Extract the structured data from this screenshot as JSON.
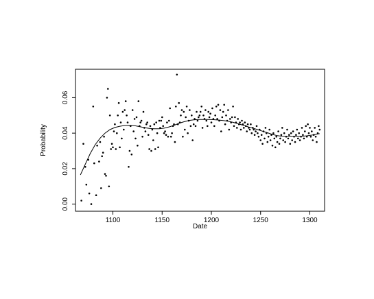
{
  "chart_data": {
    "type": "scatter",
    "title": "",
    "xlabel": "Date",
    "ylabel": "Probability",
    "xlim": [
      1062,
      1315
    ],
    "ylim": [
      -0.004,
      0.076
    ],
    "x_ticks": [
      1100,
      1150,
      1200,
      1250,
      1300
    ],
    "y_ticks": [
      0.0,
      0.02,
      0.04,
      0.06
    ],
    "x_tick_labels": [
      "1100",
      "1150",
      "1200",
      "1250",
      "1300"
    ],
    "y_tick_labels": [
      "0.00",
      "0.02",
      "0.04",
      "0.06"
    ],
    "grid": false,
    "legend": "none",
    "colors": {
      "points": "#000000",
      "line": "#000000",
      "axes": "#000000"
    },
    "series": [
      {
        "kind": "points",
        "points": [
          [
            1068,
            0.002
          ],
          [
            1070,
            0.034
          ],
          [
            1072,
            0.021
          ],
          [
            1073,
            0.011
          ],
          [
            1075,
            0.025
          ],
          [
            1076,
            0.006
          ],
          [
            1078,
            0.0
          ],
          [
            1080,
            0.055
          ],
          [
            1081,
            0.023
          ],
          [
            1083,
            0.005
          ],
          [
            1084,
            0.033
          ],
          [
            1086,
            0.024
          ],
          [
            1087,
            0.035
          ],
          [
            1088,
            0.009
          ],
          [
            1089,
            0.027
          ],
          [
            1090,
            0.029
          ],
          [
            1091,
            0.038
          ],
          [
            1092,
            0.017
          ],
          [
            1093,
            0.016
          ],
          [
            1094,
            0.06
          ],
          [
            1095,
            0.065
          ],
          [
            1096,
            0.01
          ],
          [
            1097,
            0.05
          ],
          [
            1098,
            0.031
          ],
          [
            1099,
            0.034
          ],
          [
            1100,
            0.032
          ],
          [
            1101,
            0.041
          ],
          [
            1102,
            0.045
          ],
          [
            1103,
            0.031
          ],
          [
            1104,
            0.04
          ],
          [
            1105,
            0.05
          ],
          [
            1106,
            0.057
          ],
          [
            1107,
            0.032
          ],
          [
            1108,
            0.046
          ],
          [
            1109,
            0.037
          ],
          [
            1110,
            0.052
          ],
          [
            1111,
            0.042
          ],
          [
            1112,
            0.053
          ],
          [
            1113,
            0.058
          ],
          [
            1114,
            0.05
          ],
          [
            1115,
            0.046
          ],
          [
            1116,
            0.021
          ],
          [
            1117,
            0.03
          ],
          [
            1118,
            0.044
          ],
          [
            1119,
            0.028
          ],
          [
            1120,
            0.053
          ],
          [
            1121,
            0.041
          ],
          [
            1122,
            0.048
          ],
          [
            1123,
            0.037
          ],
          [
            1124,
            0.049
          ],
          [
            1125,
            0.033
          ],
          [
            1126,
            0.058
          ],
          [
            1127,
            0.044
          ],
          [
            1128,
            0.046
          ],
          [
            1129,
            0.047
          ],
          [
            1130,
            0.038
          ],
          [
            1131,
            0.052
          ],
          [
            1132,
            0.043
          ],
          [
            1133,
            0.041
          ],
          [
            1134,
            0.045
          ],
          [
            1135,
            0.046
          ],
          [
            1136,
            0.039
          ],
          [
            1137,
            0.031
          ],
          [
            1138,
            0.044
          ],
          [
            1139,
            0.03
          ],
          [
            1140,
            0.042
          ],
          [
            1141,
            0.036
          ],
          [
            1142,
            0.045
          ],
          [
            1143,
            0.031
          ],
          [
            1144,
            0.046
          ],
          [
            1145,
            0.04
          ],
          [
            1146,
            0.032
          ],
          [
            1147,
            0.047
          ],
          [
            1148,
            0.043
          ],
          [
            1149,
            0.047
          ],
          [
            1150,
            0.049
          ],
          [
            1151,
            0.044
          ],
          [
            1152,
            0.04
          ],
          [
            1153,
            0.041
          ],
          [
            1154,
            0.039
          ],
          [
            1155,
            0.046
          ],
          [
            1156,
            0.038
          ],
          [
            1157,
            0.047
          ],
          [
            1158,
            0.054
          ],
          [
            1159,
            0.038
          ],
          [
            1160,
            0.04
          ],
          [
            1161,
            0.044
          ],
          [
            1162,
            0.045
          ],
          [
            1163,
            0.035
          ],
          [
            1164,
            0.055
          ],
          [
            1165,
            0.073
          ],
          [
            1166,
            0.045
          ],
          [
            1167,
            0.057
          ],
          [
            1168,
            0.046
          ],
          [
            1169,
            0.05
          ],
          [
            1170,
            0.053
          ],
          [
            1171,
            0.038
          ],
          [
            1172,
            0.052
          ],
          [
            1173,
            0.042
          ],
          [
            1174,
            0.049
          ],
          [
            1175,
            0.055
          ],
          [
            1176,
            0.04
          ],
          [
            1177,
            0.047
          ],
          [
            1178,
            0.053
          ],
          [
            1179,
            0.044
          ],
          [
            1180,
            0.05
          ],
          [
            1181,
            0.036
          ],
          [
            1182,
            0.045
          ],
          [
            1183,
            0.048
          ],
          [
            1184,
            0.044
          ],
          [
            1185,
            0.052
          ],
          [
            1186,
            0.047
          ],
          [
            1187,
            0.049
          ],
          [
            1188,
            0.05
          ],
          [
            1189,
            0.052
          ],
          [
            1190,
            0.055
          ],
          [
            1191,
            0.043
          ],
          [
            1192,
            0.05
          ],
          [
            1193,
            0.048
          ],
          [
            1194,
            0.053
          ],
          [
            1195,
            0.047
          ],
          [
            1196,
            0.044
          ],
          [
            1197,
            0.052
          ],
          [
            1198,
            0.049
          ],
          [
            1199,
            0.051
          ],
          [
            1200,
            0.046
          ],
          [
            1201,
            0.054
          ],
          [
            1202,
            0.048
          ],
          [
            1203,
            0.044
          ],
          [
            1204,
            0.05
          ],
          [
            1205,
            0.055
          ],
          [
            1206,
            0.048
          ],
          [
            1207,
            0.056
          ],
          [
            1208,
            0.047
          ],
          [
            1209,
            0.053
          ],
          [
            1210,
            0.041
          ],
          [
            1211,
            0.049
          ],
          [
            1212,
            0.052
          ],
          [
            1213,
            0.056
          ],
          [
            1214,
            0.045
          ],
          [
            1215,
            0.05
          ],
          [
            1216,
            0.047
          ],
          [
            1217,
            0.053
          ],
          [
            1218,
            0.042
          ],
          [
            1219,
            0.048
          ],
          [
            1220,
            0.046
          ],
          [
            1221,
            0.049
          ],
          [
            1222,
            0.055
          ],
          [
            1223,
            0.044
          ],
          [
            1224,
            0.049
          ],
          [
            1225,
            0.046
          ],
          [
            1226,
            0.043
          ],
          [
            1227,
            0.048
          ],
          [
            1228,
            0.045
          ],
          [
            1229,
            0.046
          ],
          [
            1230,
            0.042
          ],
          [
            1231,
            0.047
          ],
          [
            1232,
            0.045
          ],
          [
            1233,
            0.043
          ],
          [
            1234,
            0.046
          ],
          [
            1235,
            0.044
          ],
          [
            1236,
            0.041
          ],
          [
            1237,
            0.045
          ],
          [
            1238,
            0.043
          ],
          [
            1239,
            0.042
          ],
          [
            1240,
            0.045
          ],
          [
            1241,
            0.04
          ],
          [
            1242,
            0.043
          ],
          [
            1243,
            0.042
          ],
          [
            1244,
            0.039
          ],
          [
            1245,
            0.041
          ],
          [
            1246,
            0.044
          ],
          [
            1247,
            0.04
          ],
          [
            1248,
            0.038
          ],
          [
            1249,
            0.042
          ],
          [
            1250,
            0.036
          ],
          [
            1251,
            0.039
          ],
          [
            1252,
            0.034
          ],
          [
            1253,
            0.041
          ],
          [
            1254,
            0.037
          ],
          [
            1255,
            0.043
          ],
          [
            1256,
            0.04
          ],
          [
            1257,
            0.035
          ],
          [
            1258,
            0.038
          ],
          [
            1259,
            0.042
          ],
          [
            1260,
            0.036
          ],
          [
            1261,
            0.039
          ],
          [
            1262,
            0.033
          ],
          [
            1263,
            0.04
          ],
          [
            1264,
            0.037
          ],
          [
            1265,
            0.032
          ],
          [
            1266,
            0.038
          ],
          [
            1267,
            0.035
          ],
          [
            1268,
            0.041
          ],
          [
            1269,
            0.034
          ],
          [
            1270,
            0.037
          ],
          [
            1271,
            0.039
          ],
          [
            1272,
            0.043
          ],
          [
            1273,
            0.036
          ],
          [
            1274,
            0.04
          ],
          [
            1275,
            0.035
          ],
          [
            1276,
            0.038
          ],
          [
            1277,
            0.042
          ],
          [
            1278,
            0.037
          ],
          [
            1279,
            0.039
          ],
          [
            1280,
            0.034
          ],
          [
            1281,
            0.04
          ],
          [
            1282,
            0.036
          ],
          [
            1283,
            0.041
          ],
          [
            1284,
            0.038
          ],
          [
            1285,
            0.035
          ],
          [
            1286,
            0.039
          ],
          [
            1287,
            0.042
          ],
          [
            1288,
            0.037
          ],
          [
            1289,
            0.04
          ],
          [
            1290,
            0.036
          ],
          [
            1291,
            0.038
          ],
          [
            1292,
            0.043
          ],
          [
            1293,
            0.039
          ],
          [
            1294,
            0.037
          ],
          [
            1295,
            0.041
          ],
          [
            1296,
            0.044
          ],
          [
            1297,
            0.038
          ],
          [
            1298,
            0.045
          ],
          [
            1299,
            0.04
          ],
          [
            1300,
            0.043
          ],
          [
            1301,
            0.038
          ],
          [
            1302,
            0.041
          ],
          [
            1303,
            0.036
          ],
          [
            1304,
            0.039
          ],
          [
            1305,
            0.043
          ],
          [
            1306,
            0.038
          ],
          [
            1307,
            0.035
          ],
          [
            1308,
            0.04
          ],
          [
            1309,
            0.044
          ],
          [
            1310,
            0.042
          ]
        ]
      },
      {
        "kind": "line",
        "points": [
          [
            1067,
            0.0165
          ],
          [
            1072,
            0.0225
          ],
          [
            1077,
            0.0285
          ],
          [
            1082,
            0.0335
          ],
          [
            1087,
            0.0372
          ],
          [
            1092,
            0.04
          ],
          [
            1097,
            0.042
          ],
          [
            1102,
            0.0432
          ],
          [
            1107,
            0.0439
          ],
          [
            1112,
            0.0443
          ],
          [
            1117,
            0.0444
          ],
          [
            1122,
            0.0442
          ],
          [
            1127,
            0.0437
          ],
          [
            1132,
            0.0431
          ],
          [
            1137,
            0.0427
          ],
          [
            1142,
            0.0425
          ],
          [
            1147,
            0.0425
          ],
          [
            1152,
            0.0428
          ],
          [
            1157,
            0.0435
          ],
          [
            1162,
            0.0444
          ],
          [
            1167,
            0.0455
          ],
          [
            1172,
            0.0464
          ],
          [
            1177,
            0.0471
          ],
          [
            1182,
            0.0475
          ],
          [
            1187,
            0.0477
          ],
          [
            1192,
            0.0477
          ],
          [
            1197,
            0.0477
          ],
          [
            1202,
            0.0476
          ],
          [
            1207,
            0.0474
          ],
          [
            1212,
            0.0471
          ],
          [
            1217,
            0.0467
          ],
          [
            1222,
            0.0461
          ],
          [
            1227,
            0.0453
          ],
          [
            1232,
            0.0445
          ],
          [
            1237,
            0.0436
          ],
          [
            1242,
            0.0428
          ],
          [
            1247,
            0.042
          ],
          [
            1252,
            0.0411
          ],
          [
            1257,
            0.0402
          ],
          [
            1262,
            0.0393
          ],
          [
            1267,
            0.0386
          ],
          [
            1272,
            0.0382
          ],
          [
            1277,
            0.0381
          ],
          [
            1282,
            0.0381
          ],
          [
            1287,
            0.0381
          ],
          [
            1292,
            0.0382
          ],
          [
            1297,
            0.0385
          ],
          [
            1302,
            0.0389
          ],
          [
            1307,
            0.0394
          ],
          [
            1310,
            0.0397
          ]
        ]
      }
    ]
  }
}
